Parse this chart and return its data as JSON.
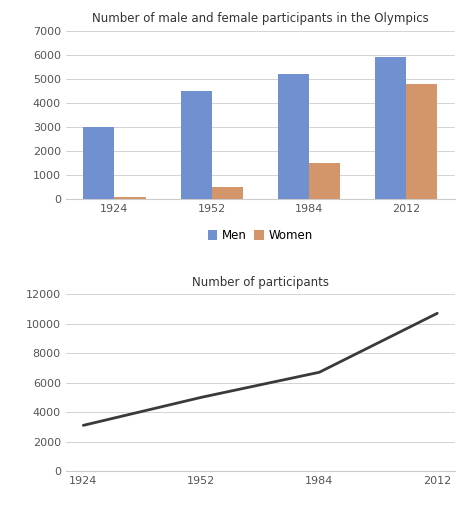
{
  "years": [
    1924,
    1952,
    1984,
    2012
  ],
  "men": [
    3000,
    4500,
    5200,
    5900
  ],
  "women": [
    100,
    500,
    1500,
    4800
  ],
  "total": [
    3100,
    5000,
    6700,
    10700
  ],
  "bar_color_men": "#7090d0",
  "bar_color_women": "#d4956a",
  "line_color": "#3a3a3a",
  "title_bar": "Number of male and female participants in the Olympics",
  "title_line": "Number of participants",
  "bar_ylim": [
    0,
    7000
  ],
  "line_ylim": [
    0,
    12000
  ],
  "bar_yticks": [
    0,
    1000,
    2000,
    3000,
    4000,
    5000,
    6000,
    7000
  ],
  "line_yticks": [
    0,
    2000,
    4000,
    6000,
    8000,
    10000,
    12000
  ],
  "legend_men": "Men",
  "legend_women": "Women",
  "background_color": "#ffffff",
  "grid_color": "#cccccc"
}
